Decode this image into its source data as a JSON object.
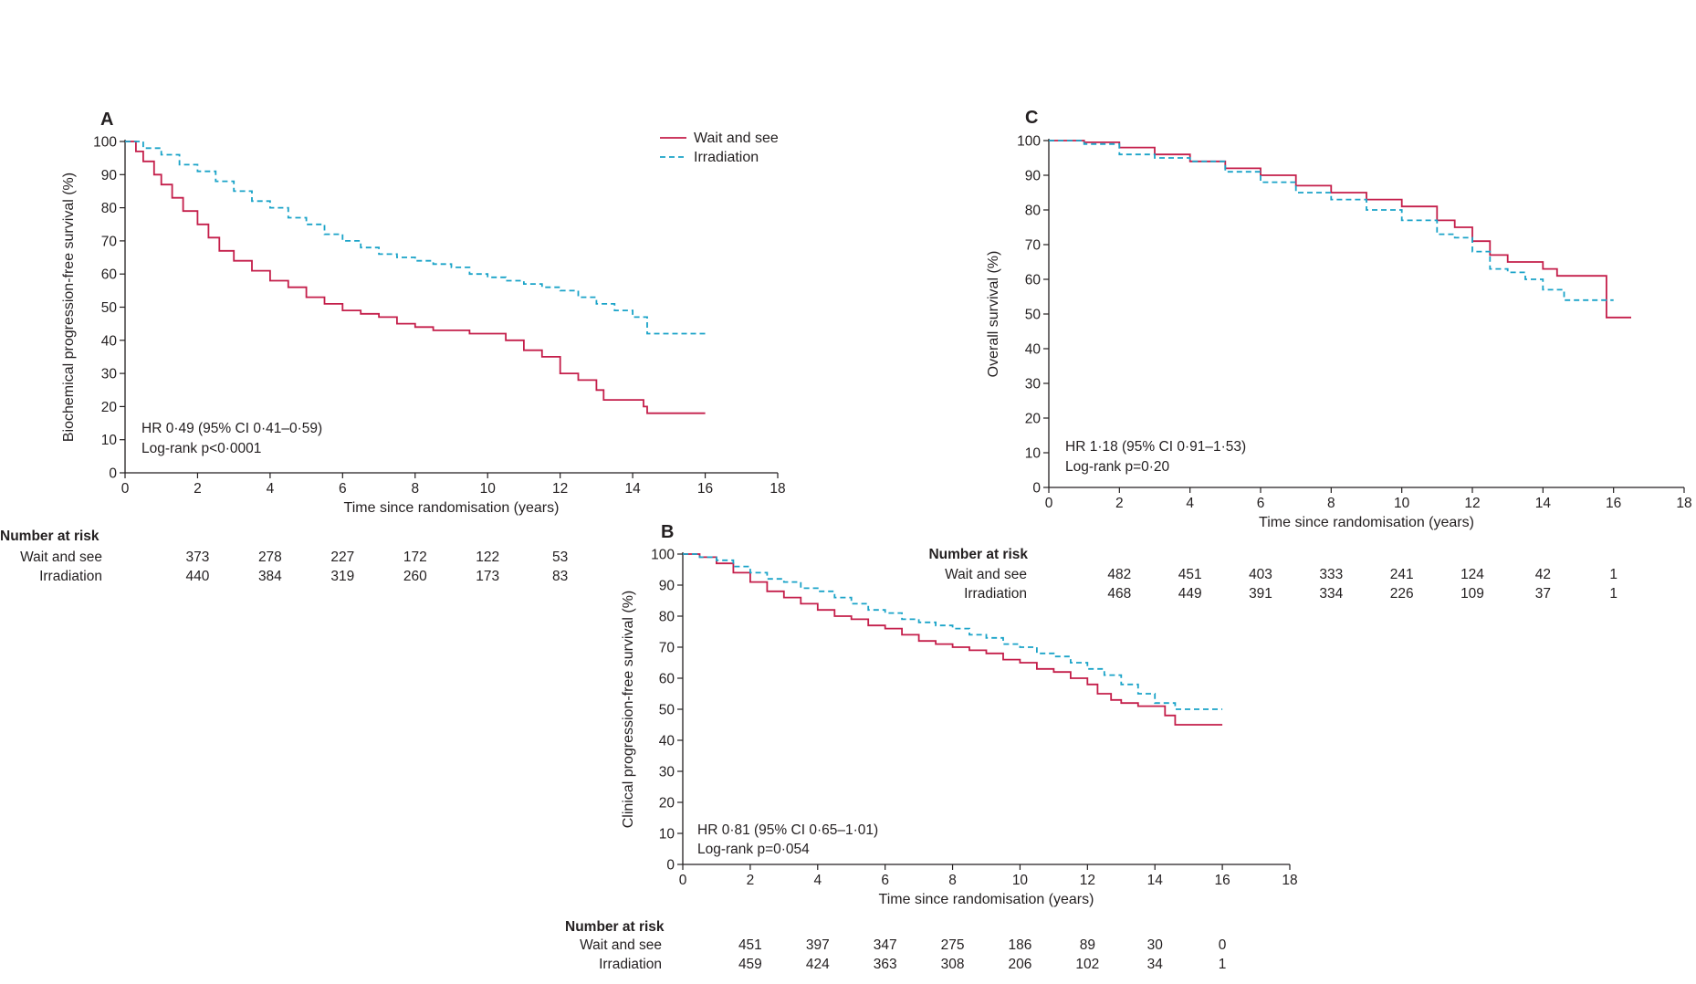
{
  "chart_data": [
    {
      "panel": "A",
      "type": "line",
      "title": "",
      "xlabel": "Time since randomisation (years)",
      "ylabel": "Biochemical progression-free survival (%)",
      "xlim": [
        0,
        18
      ],
      "ylim": [
        0,
        100
      ],
      "xticks": [
        0,
        2,
        4,
        6,
        8,
        10,
        12,
        14,
        16,
        18
      ],
      "yticks": [
        0,
        10,
        20,
        30,
        40,
        50,
        60,
        70,
        80,
        90,
        100
      ],
      "legend": {
        "placement": "top-right",
        "entries": [
          "Wait and see",
          "Irradiation"
        ]
      },
      "annotations": [
        "HR 0·49 (95% CI 0·41–0·59)",
        "Log-rank p<0·0001"
      ],
      "series": [
        {
          "name": "Wait and see",
          "color": "#c41e4a",
          "style": "solid",
          "x": [
            0,
            0.3,
            0.5,
            0.8,
            1.0,
            1.3,
            1.6,
            2.0,
            2.3,
            2.6,
            3.0,
            3.5,
            4.0,
            4.5,
            5.0,
            5.5,
            6.0,
            6.5,
            7.0,
            7.5,
            8.0,
            8.5,
            9.0,
            9.5,
            10.0,
            10.5,
            11.0,
            11.5,
            12.0,
            12.5,
            13.0,
            13.2,
            14.0,
            14.3,
            14.4,
            16.0
          ],
          "y": [
            100,
            97,
            94,
            90,
            87,
            83,
            79,
            75,
            71,
            67,
            64,
            61,
            58,
            56,
            53,
            51,
            49,
            48,
            47,
            45,
            44,
            43,
            43,
            42,
            42,
            40,
            37,
            35,
            30,
            28,
            25,
            22,
            22,
            20,
            18,
            18
          ]
        },
        {
          "name": "Irradiation",
          "color": "#1aa3c8",
          "style": "dashed",
          "x": [
            0,
            0.5,
            1.0,
            1.5,
            2.0,
            2.5,
            3.0,
            3.5,
            4.0,
            4.5,
            5.0,
            5.5,
            6.0,
            6.5,
            7.0,
            7.5,
            8.0,
            8.5,
            9.0,
            9.5,
            10.0,
            10.5,
            11.0,
            11.5,
            12.0,
            12.5,
            13.0,
            13.5,
            14.0,
            14.4,
            16.0
          ],
          "y": [
            100,
            98,
            96,
            93,
            91,
            88,
            85,
            82,
            80,
            77,
            75,
            72,
            70,
            68,
            66,
            65,
            64,
            63,
            62,
            60,
            59,
            58,
            57,
            56,
            55,
            53,
            51,
            49,
            47,
            42,
            42
          ]
        }
      ],
      "number_at_risk": {
        "title": "Number at risk",
        "times": [
          2,
          4,
          6,
          8,
          10,
          12
        ],
        "rows": [
          {
            "label": "Wait and see",
            "values": [
              "373",
              "278",
              "227",
              "172",
              "122",
              "53"
            ]
          },
          {
            "label": "Irradiation",
            "values": [
              "440",
              "384",
              "319",
              "260",
              "173",
              "83"
            ]
          }
        ]
      }
    },
    {
      "panel": "B",
      "type": "line",
      "title": "",
      "xlabel": "Time since randomisation (years)",
      "ylabel": "Clinical progression-free survival (%)",
      "xlim": [
        0,
        18
      ],
      "ylim": [
        0,
        100
      ],
      "xticks": [
        0,
        2,
        4,
        6,
        8,
        10,
        12,
        14,
        16,
        18
      ],
      "yticks": [
        0,
        10,
        20,
        30,
        40,
        50,
        60,
        70,
        80,
        90,
        100
      ],
      "annotations": [
        "HR 0·81 (95% CI 0·65–1·01)",
        "Log-rank p=0·054"
      ],
      "series": [
        {
          "name": "Wait and see",
          "color": "#c41e4a",
          "style": "solid",
          "x": [
            0,
            0.5,
            1.0,
            1.5,
            2.0,
            2.5,
            3.0,
            3.5,
            4.0,
            4.5,
            5.0,
            5.5,
            6.0,
            6.5,
            7.0,
            7.5,
            8.0,
            8.5,
            9.0,
            9.5,
            10.0,
            10.5,
            11.0,
            11.5,
            12.0,
            12.3,
            12.7,
            13.0,
            13.5,
            14.0,
            14.3,
            14.6,
            16.0
          ],
          "y": [
            100,
            99,
            97,
            94,
            91,
            88,
            86,
            84,
            82,
            80,
            79,
            77,
            76,
            74,
            72,
            71,
            70,
            69,
            68,
            66,
            65,
            63,
            62,
            60,
            58,
            55,
            53,
            52,
            51,
            51,
            48,
            45,
            45
          ]
        },
        {
          "name": "Irradiation",
          "color": "#1aa3c8",
          "style": "dashed",
          "x": [
            0,
            0.5,
            1.0,
            1.5,
            2.0,
            2.5,
            3.0,
            3.5,
            4.0,
            4.5,
            5.0,
            5.5,
            6.0,
            6.5,
            7.0,
            7.5,
            8.0,
            8.5,
            9.0,
            9.5,
            10.0,
            10.5,
            11.0,
            11.5,
            12.0,
            12.5,
            13.0,
            13.5,
            14.0,
            14.6,
            16.0
          ],
          "y": [
            100,
            99,
            98,
            96,
            94,
            92,
            91,
            89,
            88,
            86,
            84,
            82,
            81,
            79,
            78,
            77,
            76,
            74,
            73,
            71,
            70,
            68,
            67,
            65,
            63,
            61,
            58,
            55,
            52,
            50,
            50
          ]
        }
      ],
      "number_at_risk": {
        "title": "Number at risk",
        "times": [
          2,
          4,
          6,
          8,
          10,
          12,
          14,
          16
        ],
        "rows": [
          {
            "label": "Wait and see",
            "values": [
              "451",
              "397",
              "347",
              "275",
              "186",
              "89",
              "30",
              "0"
            ]
          },
          {
            "label": "Irradiation",
            "values": [
              "459",
              "424",
              "363",
              "308",
              "206",
              "102",
              "34",
              "1"
            ]
          }
        ]
      }
    },
    {
      "panel": "C",
      "type": "line",
      "title": "",
      "xlabel": "Time since randomisation (years)",
      "ylabel": "Overall survival (%)",
      "xlim": [
        0,
        18
      ],
      "ylim": [
        0,
        100
      ],
      "xticks": [
        0,
        2,
        4,
        6,
        8,
        10,
        12,
        14,
        16,
        18
      ],
      "yticks": [
        0,
        10,
        20,
        30,
        40,
        50,
        60,
        70,
        80,
        90,
        100
      ],
      "annotations": [
        "HR 1·18 (95% CI 0·91–1·53)",
        "Log-rank p=0·20"
      ],
      "series": [
        {
          "name": "Wait and see",
          "color": "#c41e4a",
          "style": "solid",
          "x": [
            0,
            1.0,
            2.0,
            3.0,
            4.0,
            5.0,
            6.0,
            7.0,
            8.0,
            9.0,
            10.0,
            11.0,
            11.5,
            12.0,
            12.5,
            13.0,
            14.0,
            14.4,
            15.8,
            16.5
          ],
          "y": [
            100,
            99.5,
            98,
            96,
            94,
            92,
            90,
            87,
            85,
            83,
            81,
            77,
            75,
            71,
            67,
            65,
            63,
            61,
            49,
            49
          ]
        },
        {
          "name": "Irradiation",
          "color": "#1aa3c8",
          "style": "dashed",
          "x": [
            0,
            1.0,
            2.0,
            3.0,
            4.0,
            5.0,
            6.0,
            7.0,
            8.0,
            9.0,
            10.0,
            11.0,
            11.5,
            12.0,
            12.5,
            13.0,
            13.5,
            14.0,
            14.6,
            16.0
          ],
          "y": [
            100,
            99,
            96,
            95,
            94,
            91,
            88,
            85,
            83,
            80,
            77,
            73,
            72,
            68,
            63,
            62,
            60,
            57,
            54,
            54
          ]
        }
      ],
      "number_at_risk": {
        "title": "Number at risk",
        "times": [
          2,
          4,
          6,
          8,
          10,
          12,
          14,
          16
        ],
        "rows": [
          {
            "label": "Wait and see",
            "values": [
              "482",
              "451",
              "403",
              "333",
              "241",
              "124",
              "42",
              "1"
            ]
          },
          {
            "label": "Irradiation",
            "values": [
              "468",
              "449",
              "391",
              "334",
              "226",
              "109",
              "37",
              "1"
            ]
          }
        ]
      }
    }
  ]
}
